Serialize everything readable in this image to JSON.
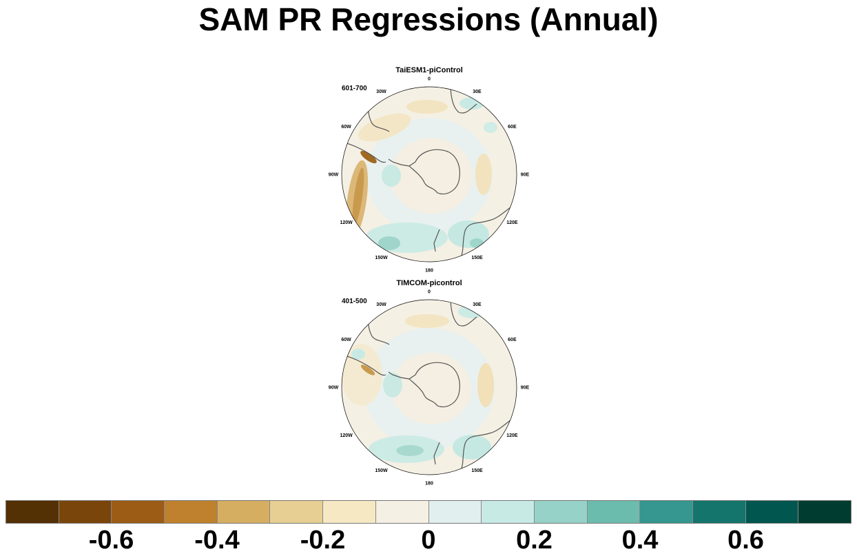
{
  "title": "SAM PR Regressions (Annual)",
  "panels": [
    {
      "title": "TaiESM1-piControl",
      "period": "601-700"
    },
    {
      "title": "TIMCOM-picontrol",
      "period": "401-500"
    }
  ],
  "longitude_labels": [
    "0",
    "30E",
    "60E",
    "90E",
    "120E",
    "150E",
    "180",
    "150W",
    "120W",
    "90W",
    "60W",
    "30W"
  ],
  "colorbar": {
    "colors": [
      "#543005",
      "#7a450a",
      "#9c5c16",
      "#bf812d",
      "#d5ae62",
      "#e7cf94",
      "#f6e8c3",
      "#f5f0e4",
      "#e1efee",
      "#c7eae5",
      "#96d2c7",
      "#6cbcae",
      "#35978f",
      "#14756c",
      "#01574f",
      "#003c30"
    ],
    "labels": [
      "-0.6",
      "-0.4",
      "-0.2",
      "0",
      "0.2",
      "0.4",
      "0.6"
    ],
    "label_values": [
      -0.6,
      -0.4,
      -0.2,
      0,
      0.2,
      0.4,
      0.6
    ],
    "range": [
      -0.8,
      0.8
    ]
  }
}
